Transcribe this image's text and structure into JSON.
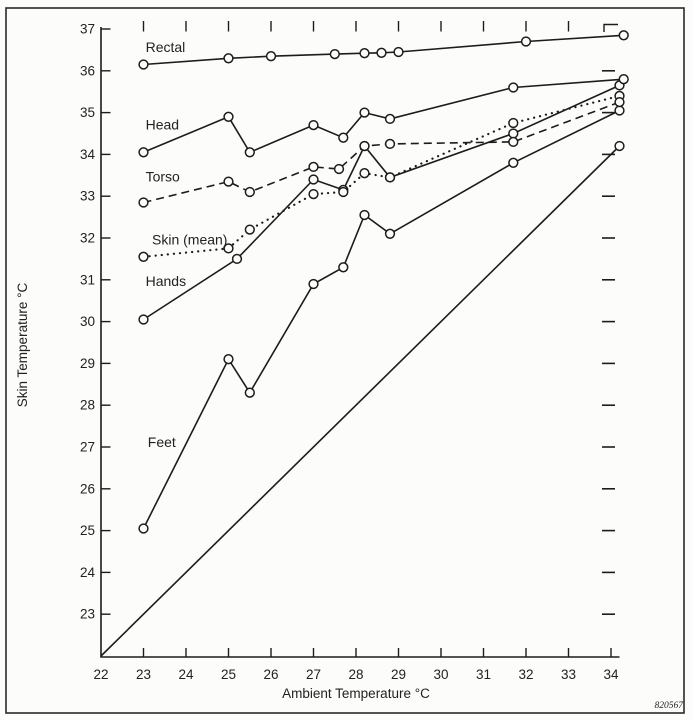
{
  "figure": {
    "code": "820567",
    "paper_color": "#fcfcfa",
    "ink_color": "#1c1c1c",
    "border_color": "#2a2a2a"
  },
  "chart_data": {
    "type": "line",
    "title": "",
    "xlabel": "Ambient Temperature °C",
    "ylabel": "Skin Temperature °C",
    "xlim": [
      22,
      34.45
    ],
    "ylim": [
      22,
      37
    ],
    "x_ticks": [
      22,
      23,
      24,
      25,
      26,
      27,
      28,
      29,
      30,
      31,
      32,
      33,
      34
    ],
    "y_ticks": [
      23,
      24,
      25,
      26,
      27,
      28,
      29,
      30,
      31,
      32,
      33,
      34,
      35,
      36,
      37
    ],
    "top_ticks": [
      23,
      24,
      25,
      26,
      27,
      28,
      29,
      30,
      31,
      32,
      33
    ],
    "right_ticks": [
      23,
      24,
      25,
      26,
      27,
      28,
      29,
      30,
      31,
      32,
      33,
      34,
      35,
      36
    ],
    "grid": false,
    "legend_position": "inline-labels-left-of-curves",
    "series": [
      {
        "name": "rectal",
        "label": "Rectal",
        "style": "solid",
        "marker": "circle",
        "label_at": [
          23.05,
          36.45
        ],
        "points": [
          [
            23,
            36.15
          ],
          [
            25,
            36.3
          ],
          [
            26,
            36.35
          ],
          [
            27.5,
            36.4
          ],
          [
            28.2,
            36.42
          ],
          [
            28.6,
            36.43
          ],
          [
            29,
            36.45
          ],
          [
            32,
            36.7
          ],
          [
            34.3,
            36.85
          ]
        ]
      },
      {
        "name": "head",
        "label": "Head",
        "style": "solid",
        "marker": "circle",
        "label_at": [
          23.05,
          34.6
        ],
        "points": [
          [
            23,
            34.05
          ],
          [
            25,
            34.9
          ],
          [
            25.5,
            34.05
          ],
          [
            27,
            34.7
          ],
          [
            27.7,
            34.4
          ],
          [
            28.2,
            35.0
          ],
          [
            28.8,
            34.85
          ],
          [
            31.7,
            35.6
          ],
          [
            34.3,
            35.8
          ]
        ]
      },
      {
        "name": "torso",
        "label": "Torso",
        "style": "dashed",
        "marker": "circle",
        "label_at": [
          23.05,
          33.35
        ],
        "points": [
          [
            23,
            32.85
          ],
          [
            25,
            33.35
          ],
          [
            25.5,
            33.1
          ],
          [
            27,
            33.7
          ],
          [
            27.6,
            33.65
          ],
          [
            28.2,
            34.2
          ],
          [
            28.8,
            34.25
          ],
          [
            31.7,
            34.3
          ],
          [
            34.2,
            35.25
          ]
        ]
      },
      {
        "name": "skin-mean",
        "label": "Skin (mean)",
        "style": "dotted",
        "marker": "circle",
        "label_at": [
          23.2,
          31.85
        ],
        "points": [
          [
            23,
            31.55
          ],
          [
            25,
            31.75
          ],
          [
            25.5,
            32.2
          ],
          [
            27,
            33.05
          ],
          [
            27.7,
            33.1
          ],
          [
            28.2,
            33.55
          ],
          [
            28.8,
            33.45
          ],
          [
            31.7,
            34.75
          ],
          [
            34.2,
            35.4
          ]
        ]
      },
      {
        "name": "hands",
        "label": "Hands",
        "style": "solid",
        "marker": "circle",
        "label_at": [
          23.05,
          30.85
        ],
        "points": [
          [
            23,
            30.05
          ],
          [
            25.2,
            31.5
          ],
          [
            27,
            33.4
          ],
          [
            27.7,
            33.15
          ],
          [
            28.2,
            34.2
          ],
          [
            28.8,
            33.45
          ],
          [
            31.7,
            34.5
          ],
          [
            34.2,
            35.65
          ]
        ]
      },
      {
        "name": "feet",
        "label": "Feet",
        "style": "solid",
        "marker": "circle",
        "label_at": [
          23.1,
          27.0
        ],
        "points": [
          [
            23,
            25.05
          ],
          [
            25,
            29.1
          ],
          [
            25.5,
            28.3
          ],
          [
            27,
            30.9
          ],
          [
            27.7,
            31.3
          ],
          [
            28.2,
            32.55
          ],
          [
            28.8,
            32.1
          ],
          [
            31.7,
            33.8
          ],
          [
            34.2,
            35.05
          ]
        ]
      },
      {
        "name": "identity-line",
        "label": "",
        "style": "solid",
        "marker": "last",
        "points": [
          [
            22,
            22
          ],
          [
            34.2,
            34.2
          ]
        ]
      }
    ]
  }
}
